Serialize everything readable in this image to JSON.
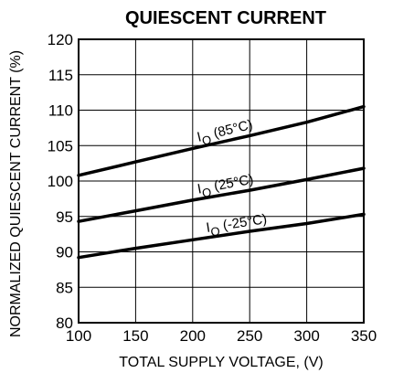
{
  "chart_data": {
    "type": "line",
    "title": "QUIESCENT CURRENT",
    "xlabel": "TOTAL SUPPLY VOLTAGE, (V)",
    "ylabel": "NORMALIZED QUIESCENT CURRENT (%)",
    "xlim": [
      100,
      350
    ],
    "ylim": [
      80,
      120
    ],
    "x_ticks": [
      100,
      150,
      200,
      250,
      300,
      350
    ],
    "y_ticks": [
      80,
      85,
      90,
      95,
      100,
      105,
      110,
      115,
      120
    ],
    "grid": true,
    "series": [
      {
        "name": "IQ (85°C)",
        "annotation": {
          "base": "I",
          "sub": "Q",
          "rest": " (85°C)"
        },
        "x": [
          100,
          150,
          200,
          250,
          300,
          350
        ],
        "y": [
          100.8,
          102.7,
          104.6,
          106.4,
          108.3,
          110.5
        ]
      },
      {
        "name": "IQ (25°C)",
        "annotation": {
          "base": "I",
          "sub": "Q",
          "rest": " (25°C)"
        },
        "x": [
          100,
          150,
          200,
          250,
          300,
          350
        ],
        "y": [
          94.3,
          95.8,
          97.3,
          98.7,
          100.2,
          101.8
        ]
      },
      {
        "name": "IQ (-25°C)",
        "annotation": {
          "base": "I",
          "sub": "Q",
          "rest": " (-25°C)"
        },
        "x": [
          100,
          150,
          200,
          250,
          300,
          350
        ],
        "y": [
          89.2,
          90.5,
          91.7,
          92.9,
          94.0,
          95.3
        ]
      }
    ]
  }
}
